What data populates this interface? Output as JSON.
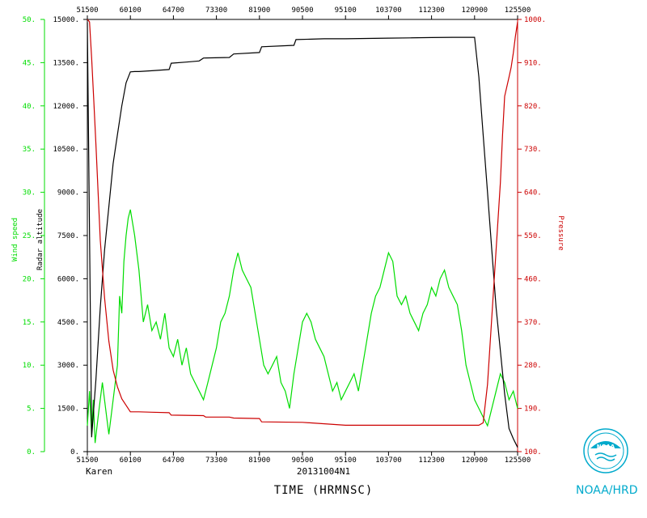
{
  "chart_data": {
    "type": "line",
    "xlabel": "TIME (HRMNSC)",
    "storm_name": "Karen",
    "flight_id": "20131004N1",
    "x_ticks": [
      "51500",
      "60100",
      "64700",
      "73300",
      "81900",
      "90500",
      "95100",
      "103700",
      "112300",
      "120900",
      "125500"
    ],
    "axes": {
      "wind": {
        "label": "Wind speed",
        "ylim": [
          0,
          50
        ],
        "ticks": [
          "0.",
          "5.",
          "10.",
          "15.",
          "20.",
          "25.",
          "30.",
          "35.",
          "40.",
          "45.",
          "50."
        ],
        "color": "#00dd00"
      },
      "altitude": {
        "label": "Radar altitude",
        "ylim": [
          0,
          15000
        ],
        "ticks": [
          "0.",
          "1500.",
          "3000.",
          "4500.",
          "6000.",
          "7500.",
          "9000.",
          "10500.",
          "12000.",
          "13500.",
          "15000."
        ],
        "color": "#000000"
      },
      "pressure": {
        "label": "Pressure",
        "ylim": [
          100,
          1000
        ],
        "ticks": [
          "100.",
          "190.",
          "280.",
          "370.",
          "460.",
          "550.",
          "640.",
          "730.",
          "820.",
          "910.",
          "1000."
        ],
        "color": "#cc0000"
      }
    },
    "series": [
      {
        "name": "Wind speed",
        "axis": "wind",
        "color": "#00dd00",
        "x": [
          0,
          0.5,
          1,
          1.4,
          1.8,
          2.5,
          3.5,
          4.5,
          5,
          6,
          7,
          7.5,
          8,
          8.5,
          9,
          9.5,
          10,
          11,
          12,
          13,
          14,
          15,
          16,
          17,
          18,
          19,
          20,
          21,
          22,
          23,
          24,
          25,
          26,
          27,
          28,
          29,
          30,
          31,
          32,
          33,
          34,
          35,
          36,
          37,
          38,
          39,
          40,
          41,
          42,
          43,
          44,
          45,
          46,
          47,
          48,
          49,
          50,
          51,
          52,
          53,
          54,
          55,
          56,
          57,
          58,
          59,
          60,
          61,
          62,
          63,
          64,
          65,
          66,
          67,
          68,
          69,
          70,
          71,
          72,
          73,
          74,
          75,
          76,
          77,
          78,
          79,
          80,
          81,
          82,
          83,
          84,
          85,
          86,
          87,
          88,
          89,
          90,
          91,
          92,
          93,
          94,
          95,
          96,
          97,
          98,
          99,
          99.5,
          100
        ],
        "values": [
          3,
          7,
          2,
          6,
          1,
          4,
          8,
          4,
          2,
          6,
          10,
          18,
          16,
          22,
          25,
          27,
          28,
          25,
          21,
          15,
          17,
          14,
          15,
          13,
          16,
          12,
          11,
          13,
          10,
          12,
          9,
          8,
          7,
          6,
          8,
          10,
          12,
          15,
          16,
          18,
          21,
          23,
          21,
          20,
          19,
          16,
          13,
          10,
          9,
          10,
          11,
          8,
          7,
          5,
          9,
          12,
          15,
          16,
          15,
          13,
          12,
          11,
          9,
          7,
          8,
          6,
          7,
          8,
          9,
          7,
          10,
          13,
          16,
          18,
          19,
          21,
          23,
          22,
          18,
          17,
          18,
          16,
          15,
          14,
          16,
          17,
          19,
          18,
          20,
          21,
          19,
          18,
          17,
          14,
          10,
          8,
          6,
          5,
          4,
          3,
          5,
          7,
          9,
          8,
          6,
          7,
          6,
          5
        ]
      },
      {
        "name": "Radar altitude",
        "axis": "altitude",
        "color": "#000000",
        "x": [
          0,
          1,
          2,
          3,
          4,
          5,
          6,
          7,
          8,
          9,
          10,
          11,
          12,
          15,
          19,
          19.5,
          23,
          26,
          27,
          33,
          34,
          40,
          40.5,
          48,
          48.5,
          55,
          60,
          65,
          70,
          75,
          80,
          85,
          90,
          91,
          92,
          93,
          94,
          95,
          96,
          97,
          98,
          99,
          100
        ],
        "values": [
          14900,
          500,
          2500,
          5000,
          7000,
          8500,
          10000,
          11000,
          12000,
          12800,
          13180,
          13190,
          13190,
          13220,
          13260,
          13480,
          13520,
          13560,
          13660,
          13680,
          13800,
          13850,
          14050,
          14100,
          14300,
          14330,
          14330,
          14340,
          14350,
          14360,
          14370,
          14380,
          14380,
          13000,
          11000,
          9000,
          7000,
          5000,
          3500,
          2000,
          800,
          450,
          150
        ]
      },
      {
        "name": "Pressure",
        "axis": "pressure",
        "color": "#cc0000",
        "x": [
          0,
          0.5,
          1,
          1.5,
          2,
          2.5,
          3,
          4,
          5,
          6,
          7,
          8,
          10,
          12,
          15,
          19,
          19.5,
          27,
          27.5,
          33,
          34,
          40,
          40.5,
          50,
          60,
          70,
          80,
          90,
          91,
          92,
          93,
          94,
          95,
          96,
          96.5,
          97,
          98,
          98.5,
          99,
          99.5,
          100
        ],
        "values": [
          1000,
          995,
          920,
          830,
          740,
          640,
          540,
          420,
          330,
          270,
          235,
          210,
          183,
          183,
          182,
          181,
          176,
          175,
          172,
          172,
          170,
          169,
          162,
          161,
          155,
          155,
          155,
          155,
          155,
          160,
          240,
          380,
          520,
          660,
          760,
          840,
          880,
          900,
          930,
          965,
          995
        ]
      }
    ]
  },
  "footer": {
    "logo_text": "NOAA",
    "label": "NOAA/HRD"
  }
}
